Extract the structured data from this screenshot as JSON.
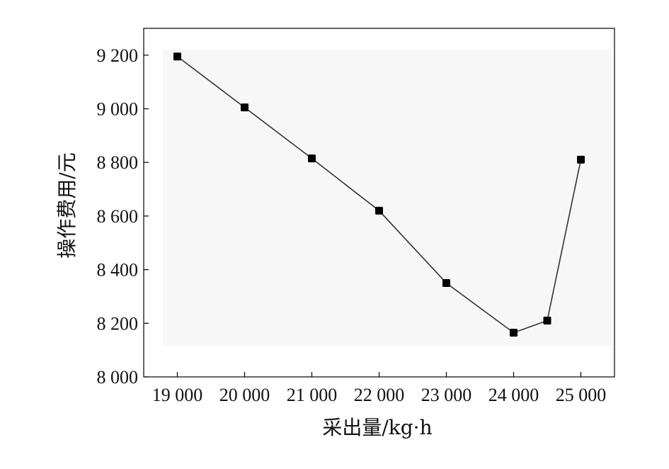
{
  "chart_data": {
    "type": "line",
    "xlabel": "采出量/kg·h",
    "ylabel": "操作费用/元",
    "x": [
      19000,
      20000,
      21000,
      22000,
      23000,
      24000,
      24500,
      25000
    ],
    "series": [
      {
        "values": [
          9195,
          9005,
          8815,
          8620,
          8350,
          8165,
          8210,
          8810
        ]
      }
    ],
    "xlim": [
      18500,
      25500
    ],
    "ylim": [
      8000,
      9300
    ],
    "x_ticks": [
      19000,
      20000,
      21000,
      22000,
      23000,
      24000,
      25000
    ],
    "x_tick_labels": [
      "19 000",
      "20 000",
      "21 000",
      "22 000",
      "23 000",
      "24 000",
      "25 000"
    ],
    "y_ticks": [
      8000,
      8200,
      8400,
      8600,
      8800,
      9000,
      9200
    ],
    "y_tick_labels": [
      "8 000",
      "8 200",
      "8 400",
      "8 600",
      "8 800",
      "9 000",
      "9 200"
    ],
    "grid": false,
    "legend": "none",
    "colors": {
      "line": "#333333",
      "marker": "#000000",
      "axis": "#000000",
      "plot_bg": "#f7f7f7"
    },
    "marker": "square"
  }
}
